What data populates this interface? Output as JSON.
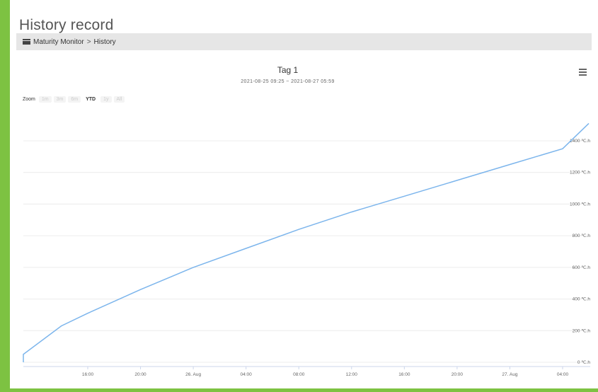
{
  "page": {
    "title": "History record",
    "accent_color": "#7dc242"
  },
  "breadcrumb": {
    "icon": "folder-icon",
    "root": "Maturity Monitor",
    "separator": ">",
    "current": "History"
  },
  "toolbar": {
    "menu_icon": "hamburger-menu-icon"
  },
  "zoom": {
    "label": "Zoom",
    "options": [
      "1m",
      "3m",
      "6m",
      "YTD",
      "1y",
      "All"
    ],
    "selected": "YTD"
  },
  "chart_data": {
    "type": "line",
    "title": "Tag 1",
    "subtitle": "2021-08-25 09:25 ~ 2021-08-27 05:59",
    "x_tick_labels": [
      "16:00",
      "20:00",
      "26. Aug",
      "04:00",
      "08:00",
      "12:00",
      "16:00",
      "20:00",
      "27. Aug",
      "04:00"
    ],
    "y_tick_labels": [
      "0 ℃.h",
      "200 ℃.h",
      "400 ℃.h",
      "600 ℃.h",
      "800 ℃.h",
      "1000 ℃.h",
      "1200 ℃.h",
      "1400 ℃.h"
    ],
    "ylim": [
      0,
      1600
    ],
    "x_unit": "hours",
    "xlim": [
      "2021-08-25 09:25",
      "2021-08-27 05:59"
    ],
    "series": [
      {
        "color": "#7cb5ec",
        "x": [
          "2021-08-25 09:25",
          "2021-08-25 09:26",
          "2021-08-25 14:00",
          "2021-08-25 16:00",
          "2021-08-25 20:00",
          "2021-08-26 00:00",
          "2021-08-26 04:00",
          "2021-08-26 08:00",
          "2021-08-26 12:00",
          "2021-08-26 16:00",
          "2021-08-26 20:00",
          "2021-08-27 00:00",
          "2021-08-27 04:00",
          "2021-08-27 05:59"
        ],
        "y": [
          0,
          50,
          230,
          310,
          460,
          600,
          720,
          840,
          950,
          1050,
          1150,
          1250,
          1350,
          1510
        ]
      }
    ],
    "grid": true,
    "y_axis_position": "right",
    "legend": "none"
  }
}
